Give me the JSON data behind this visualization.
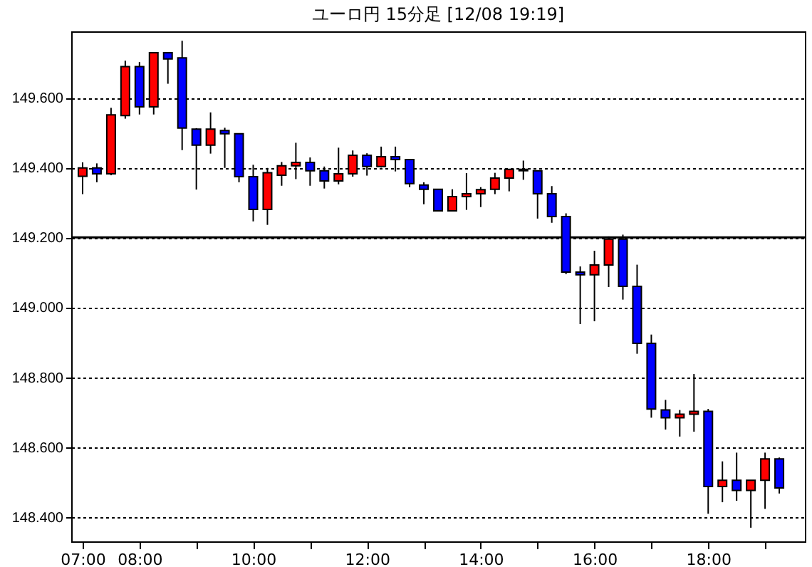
{
  "chart_data": {
    "type": "candlestick",
    "title": "ユーロ円 15分足 [12/08 19:19]",
    "x": [
      7,
      7.25,
      7.5,
      7.75,
      8,
      8.25,
      8.5,
      8.75,
      9,
      9.25,
      9.5,
      9.75,
      10,
      10.25,
      10.5,
      10.75,
      11,
      11.25,
      11.5,
      11.75,
      12,
      12.25,
      12.5,
      12.75,
      13,
      13.25,
      13.5,
      13.75,
      14,
      14.25,
      14.5,
      14.75,
      15,
      15.25,
      15.5,
      15.75,
      16,
      16.25,
      16.5,
      16.75,
      17,
      17.25,
      17.5,
      17.75,
      18,
      18.25,
      18.5,
      18.75,
      19,
      19.25
    ],
    "ohlc": [
      [
        149.375,
        149.415,
        149.324,
        149.399
      ],
      [
        149.399,
        149.412,
        149.358,
        149.382
      ],
      [
        149.382,
        149.571,
        149.378,
        149.551
      ],
      [
        149.549,
        149.706,
        149.54,
        149.689
      ],
      [
        149.689,
        149.702,
        149.552,
        149.574
      ],
      [
        149.574,
        149.729,
        149.552,
        149.729
      ],
      [
        149.729,
        149.729,
        149.64,
        149.711
      ],
      [
        149.714,
        149.763,
        149.45,
        149.513
      ],
      [
        149.51,
        149.513,
        149.337,
        149.464
      ],
      [
        149.464,
        149.558,
        149.44,
        149.51
      ],
      [
        149.506,
        149.514,
        149.399,
        149.497
      ],
      [
        149.497,
        149.497,
        149.358,
        149.374
      ],
      [
        149.374,
        149.408,
        149.246,
        149.28
      ],
      [
        149.28,
        149.399,
        149.236,
        149.385
      ],
      [
        149.378,
        149.416,
        149.348,
        149.405
      ],
      [
        149.405,
        149.471,
        149.367,
        149.415
      ],
      [
        149.415,
        149.429,
        149.348,
        149.391
      ],
      [
        149.391,
        149.403,
        149.34,
        149.362
      ],
      [
        149.362,
        149.457,
        149.352,
        149.382
      ],
      [
        149.382,
        149.449,
        149.374,
        149.435
      ],
      [
        149.435,
        149.441,
        149.377,
        149.403
      ],
      [
        149.403,
        149.46,
        149.4,
        149.431
      ],
      [
        149.431,
        149.46,
        149.389,
        149.423
      ],
      [
        149.423,
        149.423,
        149.344,
        149.354
      ],
      [
        149.35,
        149.358,
        149.295,
        149.338
      ],
      [
        149.338,
        149.338,
        149.276,
        149.276
      ],
      [
        149.276,
        149.338,
        149.276,
        149.317
      ],
      [
        149.317,
        149.384,
        149.279,
        149.325
      ],
      [
        149.325,
        149.344,
        149.287,
        149.337
      ],
      [
        149.338,
        149.385,
        149.324,
        149.37
      ],
      [
        149.37,
        149.395,
        149.332,
        149.395
      ],
      [
        149.395,
        149.42,
        149.365,
        149.391
      ],
      [
        149.391,
        149.391,
        149.254,
        149.325
      ],
      [
        149.325,
        149.347,
        149.242,
        149.26
      ],
      [
        149.26,
        149.269,
        149.095,
        149.101
      ],
      [
        149.101,
        149.117,
        148.952,
        149.093
      ],
      [
        149.093,
        149.162,
        148.96,
        149.121
      ],
      [
        149.121,
        149.203,
        149.058,
        149.195
      ],
      [
        149.195,
        149.208,
        149.022,
        149.06
      ],
      [
        149.06,
        149.122,
        148.867,
        148.897
      ],
      [
        148.897,
        148.922,
        148.684,
        148.709
      ],
      [
        148.706,
        148.735,
        148.65,
        148.684
      ],
      [
        148.684,
        148.706,
        148.63,
        148.694
      ],
      [
        148.694,
        148.809,
        148.644,
        148.702
      ],
      [
        148.702,
        148.709,
        148.409,
        148.487
      ],
      [
        148.487,
        148.559,
        148.442,
        148.505
      ],
      [
        148.505,
        148.584,
        148.446,
        148.476
      ],
      [
        148.476,
        148.505,
        148.369,
        148.505
      ],
      [
        148.505,
        148.584,
        148.423,
        148.566
      ],
      [
        148.566,
        148.57,
        148.467,
        148.483
      ]
    ],
    "colors": [
      "#ff0000",
      "#0000ff",
      "#ff0000",
      "#ff0000",
      "#0000ff",
      "#ff0000",
      "#0000ff",
      "#0000ff",
      "#0000ff",
      "#ff0000",
      "#0000ff",
      "#0000ff",
      "#0000ff",
      "#ff0000",
      "#ff0000",
      "#ff0000",
      "#0000ff",
      "#0000ff",
      "#ff0000",
      "#ff0000",
      "#0000ff",
      "#ff0000",
      "#0000ff",
      "#0000ff",
      "#0000ff",
      "#0000ff",
      "#ff0000",
      "#ff0000",
      "#ff0000",
      "#ff0000",
      "#ff0000",
      "#0000ff",
      "#0000ff",
      "#0000ff",
      "#0000ff",
      "#0000ff",
      "#ff0000",
      "#ff0000",
      "#0000ff",
      "#0000ff",
      "#0000ff",
      "#0000ff",
      "#ff0000",
      "#ff0000",
      "#0000ff",
      "#ff0000",
      "#0000ff",
      "#ff0000",
      "#ff0000",
      "#0000ff"
    ],
    "xlim": [
      6.8,
      19.7
    ],
    "xticks": [
      {
        "value": 7,
        "label": "07:00"
      },
      {
        "value": 8,
        "label": "08:00"
      },
      {
        "value": 9,
        "label": null
      },
      {
        "value": 10,
        "label": "10:00"
      },
      {
        "value": 11,
        "label": null
      },
      {
        "value": 12,
        "label": "12:00"
      },
      {
        "value": 13,
        "label": null
      },
      {
        "value": 14,
        "label": "14:00"
      },
      {
        "value": 15,
        "label": null
      },
      {
        "value": 16,
        "label": "16:00"
      },
      {
        "value": 17,
        "label": null
      },
      {
        "value": 18,
        "label": "18:00"
      },
      {
        "value": 19,
        "label": null
      }
    ],
    "ylim": [
      148.33,
      149.79
    ],
    "yticks": [
      {
        "value": 148.4,
        "label": "148.400"
      },
      {
        "value": 148.6,
        "label": "148.600"
      },
      {
        "value": 148.8,
        "label": "148.800"
      },
      {
        "value": 149,
        "label": "149.000"
      },
      {
        "value": 149.2,
        "label": "149.200"
      },
      {
        "value": 149.4,
        "label": "149.400"
      },
      {
        "value": 149.6,
        "label": "149.600"
      }
    ],
    "grid": "y",
    "ref_lines": [
      {
        "axis": "y",
        "value": 149.2,
        "color": "#000000",
        "line_style": "solid"
      }
    ]
  }
}
